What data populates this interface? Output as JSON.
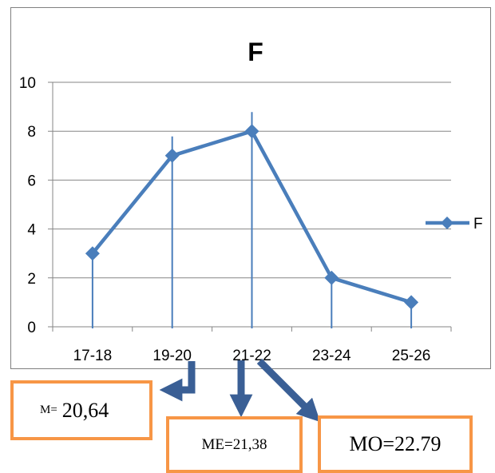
{
  "chart_data": {
    "type": "line",
    "title": "F",
    "categories": [
      "17-18",
      "19-20",
      "21-22",
      "23-24",
      "25-26"
    ],
    "series": [
      {
        "name": "F",
        "values": [
          3,
          7,
          8,
          2,
          1
        ],
        "color": "#4a7ebb"
      }
    ],
    "ylim": [
      0,
      10
    ],
    "yticks": [
      "0",
      "2",
      "4",
      "6",
      "8",
      "10"
    ],
    "grid": true,
    "legend": "right",
    "annotation_color": "#3a5f95",
    "box_border_color": "#f79646"
  },
  "annotations": {
    "mean": {
      "label": "M=",
      "value": "20,64"
    },
    "median": {
      "text": "ME=21,38"
    },
    "mode": {
      "text": "MO=22.79"
    }
  }
}
